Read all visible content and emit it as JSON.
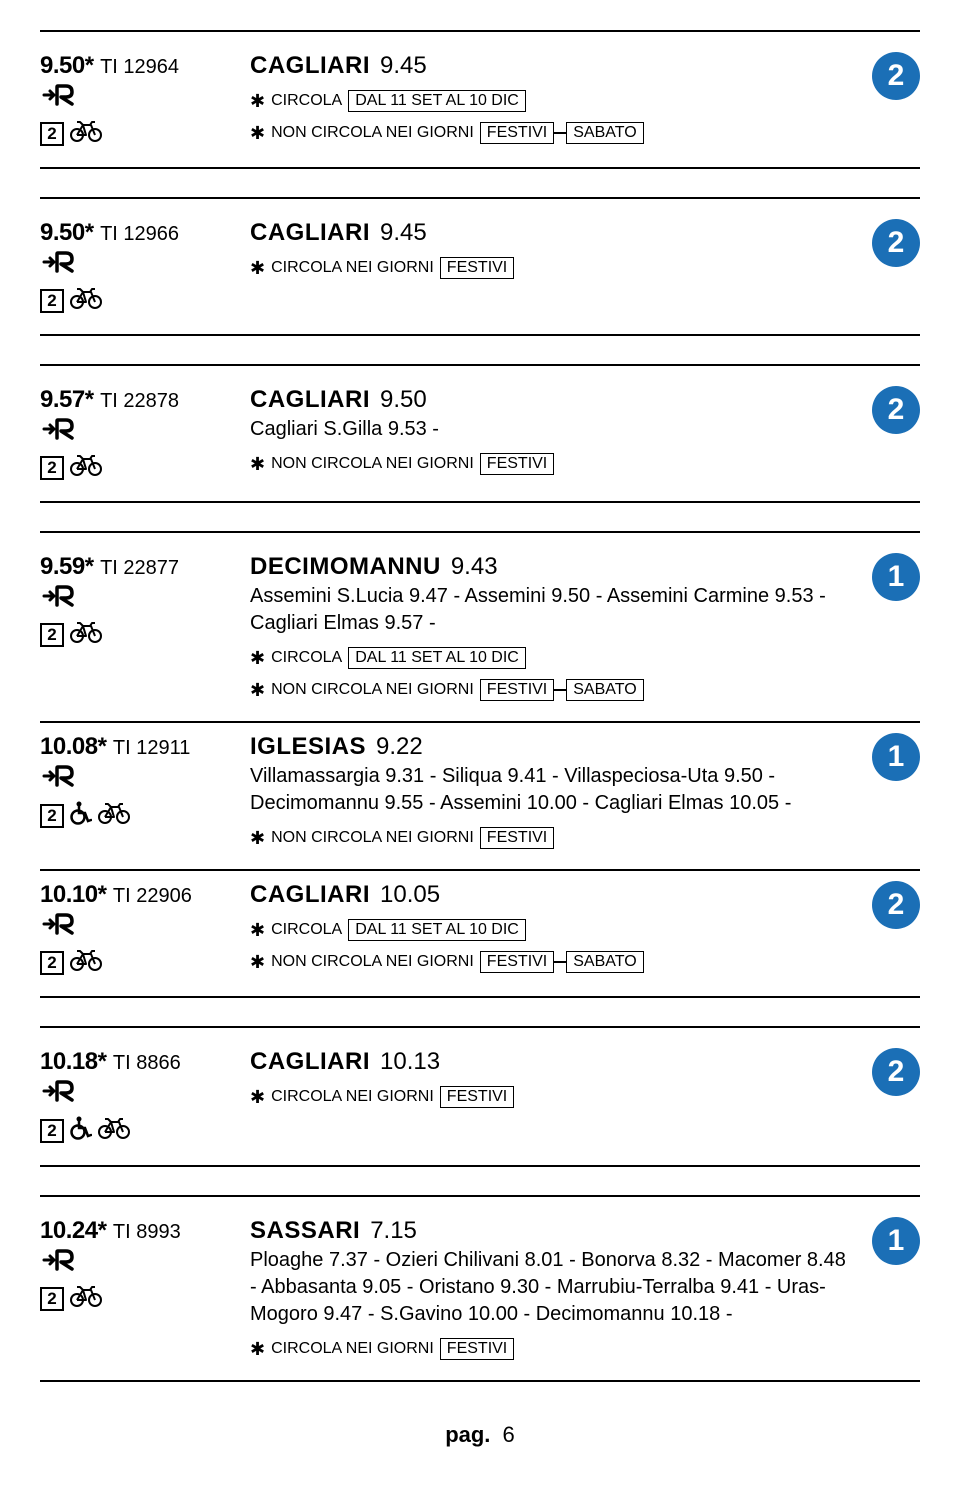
{
  "platform_color": "#1b6fb6",
  "entries": [
    {
      "dep_time": "9.50",
      "train_code": "TI 12964",
      "class": "2",
      "icons": [
        "bike"
      ],
      "dest": "CAGLIARI",
      "dest_time": "9.45",
      "stops": "",
      "notes": [
        {
          "prefix": "CIRCOLA",
          "boxes": [
            "DAL 11 SET AL 10 DIC"
          ]
        },
        {
          "prefix": "NON CIRCOLA NEI GIORNI",
          "boxes": [
            "FESTIVI",
            "SABATO"
          ]
        }
      ],
      "platform": "2",
      "gap_before": false,
      "rule_top": true
    },
    {
      "dep_time": "9.50",
      "train_code": "TI 12966",
      "class": "2",
      "icons": [
        "bike"
      ],
      "dest": "CAGLIARI",
      "dest_time": "9.45",
      "stops": "",
      "notes": [
        {
          "prefix": "CIRCOLA NEI GIORNI",
          "boxes": [
            "FESTIVI"
          ]
        }
      ],
      "platform": "2",
      "gap_before": true,
      "rule_top": true
    },
    {
      "dep_time": "9.57",
      "train_code": "TI 22878",
      "class": "2",
      "icons": [
        "bike"
      ],
      "dest": "CAGLIARI",
      "dest_time": "9.50",
      "stops": "Cagliari S.Gilla 9.53 -",
      "notes": [
        {
          "prefix": "NON CIRCOLA NEI GIORNI",
          "boxes": [
            "FESTIVI"
          ]
        }
      ],
      "platform": "2",
      "gap_before": true,
      "rule_top": true
    },
    {
      "dep_time": "9.59",
      "train_code": "TI 22877",
      "class": "2",
      "icons": [
        "bike"
      ],
      "dest": "DECIMOMANNU",
      "dest_time": "9.43",
      "stops": "Assemini S.Lucia 9.47 - Assemini 9.50 - Assemini Carmine 9.53 - Cagliari Elmas 9.57 -",
      "notes": [
        {
          "prefix": "CIRCOLA",
          "boxes": [
            "DAL 11 SET AL 10 DIC"
          ]
        },
        {
          "prefix": "NON CIRCOLA NEI GIORNI",
          "boxes": [
            "FESTIVI",
            "SABATO"
          ]
        }
      ],
      "platform": "1",
      "gap_before": true,
      "rule_top": true
    },
    {
      "dep_time": "10.08",
      "train_code": "TI 12911",
      "class": "2",
      "icons": [
        "wheelchair",
        "bike"
      ],
      "dest": "IGLESIAS",
      "dest_time": "9.22",
      "stops": "Villamassargia 9.31 - Siliqua 9.41 - Villaspeciosa-Uta 9.50 - Decimomannu 9.55 - Assemini 10.00 - Cagliari Elmas 10.05 -",
      "notes": [
        {
          "prefix": "NON CIRCOLA NEI GIORNI",
          "boxes": [
            "FESTIVI"
          ]
        }
      ],
      "platform": "1",
      "gap_before": false,
      "rule_top": false
    },
    {
      "dep_time": "10.10",
      "train_code": "TI 22906",
      "class": "2",
      "icons": [
        "bike"
      ],
      "dest": "CAGLIARI",
      "dest_time": "10.05",
      "stops": "",
      "notes": [
        {
          "prefix": "CIRCOLA",
          "boxes": [
            "DAL 11 SET AL 10 DIC"
          ]
        },
        {
          "prefix": "NON CIRCOLA NEI GIORNI",
          "boxes": [
            "FESTIVI",
            "SABATO"
          ]
        }
      ],
      "platform": "2",
      "gap_before": false,
      "rule_top": false
    },
    {
      "dep_time": "10.18",
      "train_code": "TI 8866",
      "class": "2",
      "icons": [
        "wheelchair",
        "bike"
      ],
      "dest": "CAGLIARI",
      "dest_time": "10.13",
      "stops": "",
      "notes": [
        {
          "prefix": "CIRCOLA NEI GIORNI",
          "boxes": [
            "FESTIVI"
          ]
        }
      ],
      "platform": "2",
      "gap_before": true,
      "rule_top": true
    },
    {
      "dep_time": "10.24",
      "train_code": "TI 8993",
      "class": "2",
      "icons": [
        "bike"
      ],
      "dest": "SASSARI",
      "dest_time": "7.15",
      "stops": "Ploaghe 7.37 - Ozieri Chilivani 8.01 - Bonorva 8.32 - Macomer 8.48 - Abbasanta 9.05 - Oristano 9.30 - Marrubiu-Terralba 9.41 - Uras-Mogoro 9.47 - S.Gavino 10.00 - Decimomannu 10.18 -",
      "notes": [
        {
          "prefix": "CIRCOLA NEI GIORNI",
          "boxes": [
            "FESTIVI"
          ]
        }
      ],
      "platform": "1",
      "gap_before": true,
      "rule_top": true
    }
  ],
  "footer": {
    "label": "pag.",
    "number": "6"
  }
}
